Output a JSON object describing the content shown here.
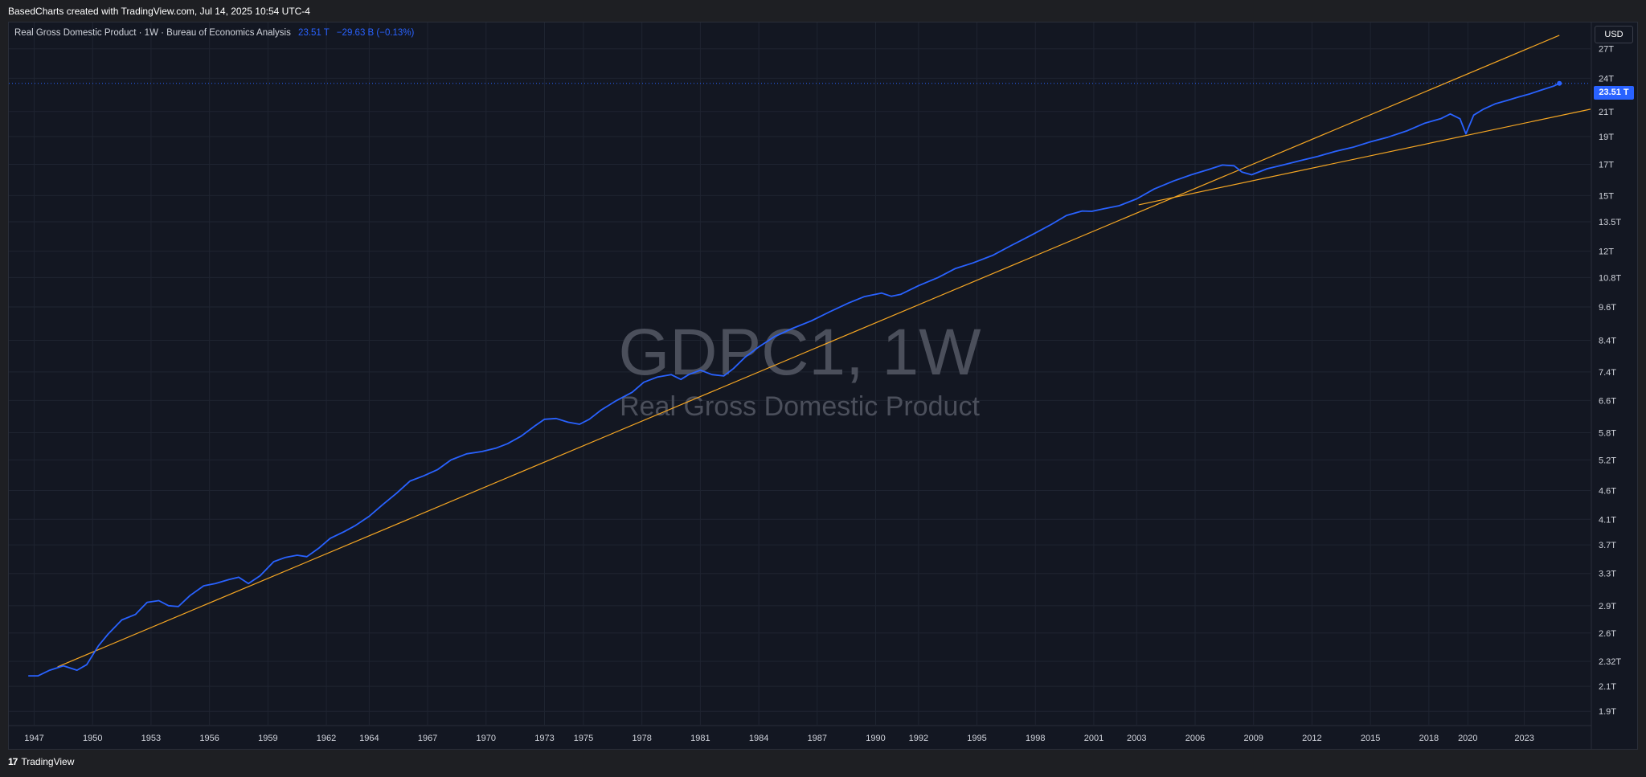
{
  "header": {
    "caption": "BasedCharts created with TradingView.com, Jul 14, 2025 10:54 UTC-4"
  },
  "legend": {
    "series_name": "Real Gross Domestic Product · 1W · Bureau of Economics Analysis",
    "last_value": "23.51 T",
    "change": "−29.63 B (−0.13%)"
  },
  "watermark": {
    "symbol": "GDPC1, 1W",
    "description": "Real Gross Domestic Product"
  },
  "price_scale": {
    "currency": "USD",
    "last_price_label": "23.51 T"
  },
  "footer": {
    "brand": "TradingView",
    "logo_text": "17"
  },
  "colors": {
    "series": "#2962ff",
    "trendline": "#f5a623",
    "background": "#131722",
    "grid": "#1f2431",
    "axis_text": "#d1d4dc",
    "watermark": "#4b4f5b"
  },
  "chart_data": {
    "type": "line",
    "y_scale": "log",
    "ylim": [
      1.8,
      30
    ],
    "xlim": [
      1945.7,
      2026.9
    ],
    "y_ticks": [
      {
        "value": 27,
        "label": "27T"
      },
      {
        "value": 24,
        "label": "24T"
      },
      {
        "value": 21,
        "label": "21T"
      },
      {
        "value": 19,
        "label": "19T"
      },
      {
        "value": 17,
        "label": "17T"
      },
      {
        "value": 15,
        "label": "15T"
      },
      {
        "value": 13.5,
        "label": "13.5T"
      },
      {
        "value": 12,
        "label": "12T"
      },
      {
        "value": 10.8,
        "label": "10.8T"
      },
      {
        "value": 9.6,
        "label": "9.6T"
      },
      {
        "value": 8.4,
        "label": "8.4T"
      },
      {
        "value": 7.4,
        "label": "7.4T"
      },
      {
        "value": 6.6,
        "label": "6.6T"
      },
      {
        "value": 5.8,
        "label": "5.8T"
      },
      {
        "value": 5.2,
        "label": "5.2T"
      },
      {
        "value": 4.6,
        "label": "4.6T"
      },
      {
        "value": 4.1,
        "label": "4.1T"
      },
      {
        "value": 3.7,
        "label": "3.7T"
      },
      {
        "value": 3.3,
        "label": "3.3T"
      },
      {
        "value": 2.9,
        "label": "2.9T"
      },
      {
        "value": 2.6,
        "label": "2.6T"
      },
      {
        "value": 2.32,
        "label": "2.32T"
      },
      {
        "value": 2.1,
        "label": "2.1T"
      },
      {
        "value": 1.9,
        "label": "1.9T"
      }
    ],
    "x_ticks": [
      {
        "value": 1947,
        "label": "1947"
      },
      {
        "value": 1950,
        "label": "1950"
      },
      {
        "value": 1953,
        "label": "1953"
      },
      {
        "value": 1956,
        "label": "1956"
      },
      {
        "value": 1959,
        "label": "1959"
      },
      {
        "value": 1962,
        "label": "1962"
      },
      {
        "value": 1964.2,
        "label": "1964"
      },
      {
        "value": 1967.2,
        "label": "1967"
      },
      {
        "value": 1970.2,
        "label": "1970"
      },
      {
        "value": 1973.2,
        "label": "1973"
      },
      {
        "value": 1975.2,
        "label": "1975"
      },
      {
        "value": 1978.2,
        "label": "1978"
      },
      {
        "value": 1981.2,
        "label": "1981"
      },
      {
        "value": 1984.2,
        "label": "1984"
      },
      {
        "value": 1987.2,
        "label": "1987"
      },
      {
        "value": 1990.2,
        "label": "1990"
      },
      {
        "value": 1992.4,
        "label": "1992"
      },
      {
        "value": 1995.4,
        "label": "1995"
      },
      {
        "value": 1998.4,
        "label": "1998"
      },
      {
        "value": 2001.4,
        "label": "2001"
      },
      {
        "value": 2003.6,
        "label": "2003"
      },
      {
        "value": 2006.6,
        "label": "2006"
      },
      {
        "value": 2009.6,
        "label": "2009"
      },
      {
        "value": 2012.6,
        "label": "2012"
      },
      {
        "value": 2015.6,
        "label": "2015"
      },
      {
        "value": 2018.6,
        "label": "2018"
      },
      {
        "value": 2020.6,
        "label": "2020"
      },
      {
        "value": 2023.5,
        "label": "2023"
      }
    ],
    "series": [
      {
        "x": [
          1946.7,
          1947.2,
          1947.8,
          1948.5,
          1949.2,
          1949.7,
          1950.3,
          1950.8,
          1951.5,
          1952.2,
          1952.8,
          1953.4,
          1953.9,
          1954.4,
          1955.0,
          1955.7,
          1956.3,
          1957.0,
          1957.5,
          1958.0,
          1958.6,
          1959.3,
          1959.9,
          1960.5,
          1961.0,
          1961.6,
          1962.2,
          1962.9,
          1963.5,
          1964.2,
          1964.9,
          1965.6,
          1966.3,
          1967.0,
          1967.7,
          1968.4,
          1969.2,
          1970.0,
          1970.7,
          1971.3,
          1972.0,
          1972.7,
          1973.2,
          1973.8,
          1974.4,
          1975.0,
          1975.5,
          1976.1,
          1976.9,
          1977.7,
          1978.3,
          1979.0,
          1979.7,
          1980.2,
          1980.6,
          1981.2,
          1981.8,
          1982.4,
          1982.9,
          1983.5,
          1984.2,
          1985.0,
          1985.9,
          1986.9,
          1987.8,
          1988.8,
          1989.6,
          1990.5,
          1991.0,
          1991.5,
          1992.4,
          1993.4,
          1994.3,
          1995.2,
          1996.2,
          1997.2,
          1998.2,
          1999.2,
          2000.0,
          2000.8,
          2001.3,
          2001.9,
          2002.7,
          2003.6,
          2004.5,
          2005.5,
          2006.4,
          2007.3,
          2008.0,
          2008.6,
          2009.0,
          2009.5,
          2010.3,
          2011.1,
          2012.0,
          2012.9,
          2013.8,
          2014.7,
          2015.6,
          2016.5,
          2017.5,
          2018.4,
          2019.2,
          2019.7,
          2020.2,
          2020.5,
          2020.9,
          2021.4,
          2022.0,
          2022.6,
          2023.2,
          2023.8,
          2024.4,
          2025.0,
          2025.3
        ],
        "values": [
          2.19,
          2.19,
          2.24,
          2.28,
          2.24,
          2.29,
          2.47,
          2.59,
          2.74,
          2.8,
          2.94,
          2.96,
          2.9,
          2.89,
          3.02,
          3.14,
          3.17,
          3.22,
          3.25,
          3.17,
          3.27,
          3.46,
          3.52,
          3.55,
          3.53,
          3.65,
          3.8,
          3.9,
          4.0,
          4.15,
          4.35,
          4.55,
          4.78,
          4.88,
          5.0,
          5.2,
          5.33,
          5.38,
          5.45,
          5.55,
          5.72,
          5.96,
          6.12,
          6.14,
          6.05,
          6.0,
          6.12,
          6.35,
          6.6,
          6.82,
          7.1,
          7.25,
          7.32,
          7.18,
          7.32,
          7.45,
          7.32,
          7.28,
          7.5,
          7.85,
          8.18,
          8.52,
          8.8,
          9.08,
          9.4,
          9.75,
          10.0,
          10.15,
          10.02,
          10.1,
          10.45,
          10.8,
          11.2,
          11.45,
          11.8,
          12.3,
          12.8,
          13.35,
          13.85,
          14.1,
          14.08,
          14.22,
          14.4,
          14.8,
          15.4,
          15.9,
          16.3,
          16.65,
          16.95,
          16.9,
          16.48,
          16.3,
          16.7,
          16.95,
          17.25,
          17.55,
          17.9,
          18.2,
          18.6,
          18.95,
          19.45,
          20.05,
          20.4,
          20.8,
          20.4,
          19.2,
          20.7,
          21.2,
          21.65,
          21.95,
          22.25,
          22.55,
          22.9,
          23.25,
          23.51
        ]
      }
    ],
    "trendlines": [
      {
        "from": [
          1948.2,
          2.27
        ],
        "to": [
          2025.3,
          28.5
        ]
      },
      {
        "from": [
          2003.7,
          14.45
        ],
        "to": [
          2026.9,
          21.2
        ]
      }
    ]
  }
}
